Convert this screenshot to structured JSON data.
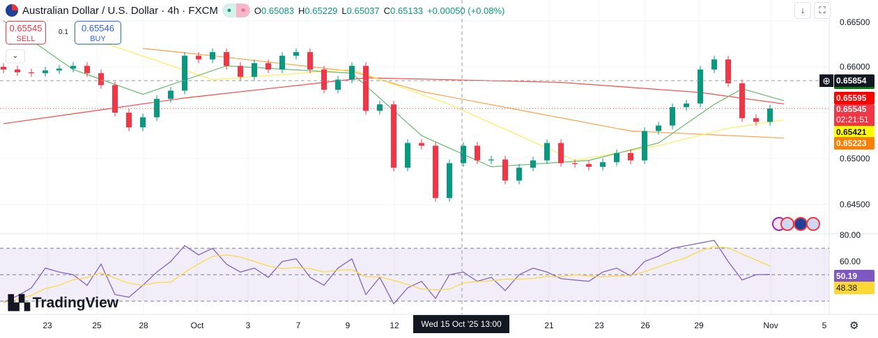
{
  "header": {
    "title": "Australian Dollar / U.S. Dollar · 4h · FXCM",
    "open_label": "O",
    "open": "0.65083",
    "high_label": "H",
    "high": "0.65229",
    "low_label": "L",
    "low": "0.65037",
    "close_label": "C",
    "close": "0.65133",
    "change": "+0.00050 (+0.08%)",
    "status_icon": "market-open-dot",
    "replay_icon": "wave-icon"
  },
  "trade": {
    "sell_price": "0.65545",
    "sell_label": "SELL",
    "buy_price": "0.65546",
    "buy_label": "BUY",
    "spread": "0.1"
  },
  "price_axis": {
    "ticks": [
      "0.66500",
      "0.66000",
      "0.65000",
      "0.64500"
    ],
    "crosshair": "0.65854",
    "labels": [
      {
        "value": "0.65595",
        "color": "#ff0000"
      },
      {
        "value": "0.65545",
        "color": "#f23645",
        "countdown": "02:21:51"
      },
      {
        "value": "0.65421",
        "color": "#ffff00"
      },
      {
        "value": "0.65223",
        "color": "#ff7f00"
      }
    ]
  },
  "rsi_axis": {
    "ticks": [
      "80.00",
      "60.00"
    ],
    "rsi": "50.19",
    "rsi_ma": "48.38",
    "rsi_color": "#7e57c2",
    "ma_color": "#fdd835"
  },
  "time_axis": {
    "labels": [
      "23",
      "25",
      "28",
      "Oct",
      "3",
      "7",
      "9",
      "12",
      "21",
      "23",
      "26",
      "29",
      "Nov",
      "5"
    ],
    "crosshair": "Wed 15 Oct '25   13:00"
  },
  "brand": "TradingView",
  "colors": {
    "up": "#089981",
    "down": "#f23645",
    "ma_red": "#f44",
    "ma_orange": "#ff9f43",
    "ma_yellow": "#ffee58",
    "ma_green": "#66bb6a"
  },
  "chart_data": {
    "type": "candlestick",
    "ylim": [
      0.6425,
      0.6675
    ],
    "closes": [
      0.6597,
      0.6594,
      0.6593,
      0.6596,
      0.6598,
      0.6601,
      0.6593,
      0.658,
      0.655,
      0.6534,
      0.6545,
      0.6565,
      0.6574,
      0.6612,
      0.6608,
      0.6616,
      0.6601,
      0.6589,
      0.6604,
      0.6597,
      0.6612,
      0.6616,
      0.6597,
      0.6575,
      0.6586,
      0.6601,
      0.6552,
      0.6559,
      0.649,
      0.6517,
      0.6514,
      0.6457,
      0.6495,
      0.6514,
      0.6498,
      0.6499,
      0.6476,
      0.649,
      0.6498,
      0.6517,
      0.6495,
      0.6494,
      0.6491,
      0.6496,
      0.6506,
      0.6498,
      0.653,
      0.6536,
      0.6556,
      0.656,
      0.6597,
      0.6608,
      0.6582,
      0.6544,
      0.654,
      0.65545
    ],
    "ma_red": [
      [
        0,
        0.6538
      ],
      [
        13,
        0.6566
      ],
      [
        26,
        0.6588
      ],
      [
        40,
        0.6583
      ],
      [
        50,
        0.6572
      ],
      [
        56,
        0.65595
      ]
    ],
    "ma_orange": [
      [
        10,
        0.662
      ],
      [
        15,
        0.6612
      ],
      [
        25,
        0.6595
      ],
      [
        30,
        0.6573
      ],
      [
        45,
        0.653
      ],
      [
        56,
        0.65223
      ]
    ],
    "ma_yellow": [
      [
        7,
        0.6627
      ],
      [
        15,
        0.6586
      ],
      [
        25,
        0.6597
      ],
      [
        32,
        0.6559
      ],
      [
        41,
        0.6498
      ],
      [
        47,
        0.6514
      ],
      [
        52,
        0.6533
      ],
      [
        56,
        0.65421
      ]
    ],
    "ma_green": [
      [
        0,
        0.665
      ],
      [
        5,
        0.6597
      ],
      [
        10,
        0.657
      ],
      [
        16,
        0.6601
      ],
      [
        25,
        0.6593
      ],
      [
        30,
        0.6525
      ],
      [
        35,
        0.6491
      ],
      [
        42,
        0.6498
      ],
      [
        47,
        0.6517
      ],
      [
        51,
        0.6559
      ],
      [
        53,
        0.6576
      ],
      [
        56,
        0.6563
      ]
    ],
    "rsi": [
      29,
      34,
      40,
      55,
      52,
      50,
      42,
      58,
      35,
      33,
      42,
      52,
      60,
      72,
      65,
      70,
      58,
      52,
      55,
      48,
      60,
      62,
      48,
      42,
      55,
      62,
      35,
      48,
      28,
      40,
      45,
      32,
      50,
      52,
      45,
      48,
      38,
      50,
      55,
      52,
      47,
      46,
      45,
      52,
      55,
      49,
      60,
      64,
      70,
      72,
      74,
      76,
      60,
      46,
      50,
      50.19
    ],
    "rsi_levels": [
      70,
      50,
      30
    ]
  }
}
